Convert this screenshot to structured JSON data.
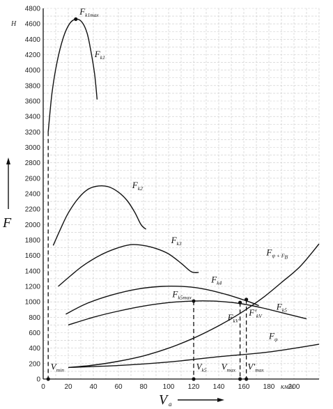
{
  "chart_data": {
    "type": "line",
    "title": "",
    "xlabel": {
      "main": "V",
      "sub": "a"
    },
    "ylabel": "F",
    "xunit": "км/ч",
    "yunit": "Н",
    "xlim": [
      0,
      220
    ],
    "ylim": [
      0,
      4800
    ],
    "grid": true,
    "x_ticks": [
      0,
      20,
      40,
      60,
      80,
      100,
      120,
      140,
      160,
      180,
      200
    ],
    "y_ticks": [
      0,
      200,
      400,
      600,
      800,
      1000,
      1200,
      1400,
      1600,
      1800,
      2000,
      2200,
      2400,
      2600,
      2800,
      3000,
      3200,
      3400,
      3600,
      3800,
      4000,
      4200,
      4400,
      4600,
      4800
    ],
    "series": [
      {
        "id": "fk1",
        "points": [
          [
            4,
            3200
          ],
          [
            7,
            3700
          ],
          [
            11,
            4100
          ],
          [
            16,
            4420
          ],
          [
            21,
            4600
          ],
          [
            26,
            4660
          ],
          [
            31,
            4620
          ],
          [
            35,
            4480
          ],
          [
            38,
            4250
          ],
          [
            41,
            3950
          ],
          [
            43,
            3620
          ]
        ]
      },
      {
        "id": "fk2",
        "points": [
          [
            8,
            1730
          ],
          [
            14,
            1950
          ],
          [
            20,
            2150
          ],
          [
            28,
            2340
          ],
          [
            36,
            2460
          ],
          [
            44,
            2500
          ],
          [
            52,
            2490
          ],
          [
            60,
            2420
          ],
          [
            67,
            2310
          ],
          [
            73,
            2160
          ],
          [
            78,
            2000
          ],
          [
            82,
            1940
          ]
        ]
      },
      {
        "id": "fk3",
        "points": [
          [
            12,
            1200
          ],
          [
            22,
            1340
          ],
          [
            32,
            1470
          ],
          [
            45,
            1600
          ],
          [
            58,
            1690
          ],
          [
            70,
            1740
          ],
          [
            80,
            1730
          ],
          [
            90,
            1690
          ],
          [
            100,
            1620
          ],
          [
            110,
            1500
          ],
          [
            118,
            1390
          ],
          [
            124,
            1380
          ]
        ]
      },
      {
        "id": "fk4",
        "points": [
          [
            18,
            840
          ],
          [
            35,
            980
          ],
          [
            55,
            1090
          ],
          [
            75,
            1165
          ],
          [
            95,
            1200
          ],
          [
            115,
            1195
          ],
          [
            130,
            1160
          ],
          [
            145,
            1100
          ],
          [
            157,
            1040
          ],
          [
            166,
            990
          ],
          [
            172,
            950
          ]
        ]
      },
      {
        "id": "fk5",
        "points": [
          [
            20,
            700
          ],
          [
            40,
            800
          ],
          [
            60,
            880
          ],
          [
            80,
            945
          ],
          [
            100,
            990
          ],
          [
            120,
            1010
          ],
          [
            135,
            1010
          ],
          [
            148,
            995
          ],
          [
            160,
            970
          ],
          [
            175,
            920
          ],
          [
            195,
            840
          ],
          [
            210,
            780
          ]
        ]
      },
      {
        "id": "fpsi_fw",
        "points": [
          [
            20,
            150
          ],
          [
            40,
            180
          ],
          [
            60,
            230
          ],
          [
            80,
            300
          ],
          [
            100,
            400
          ],
          [
            120,
            530
          ],
          [
            140,
            690
          ],
          [
            157,
            850
          ],
          [
            175,
            1050
          ],
          [
            190,
            1250
          ],
          [
            205,
            1460
          ],
          [
            220,
            1750
          ]
        ]
      },
      {
        "id": "fpsi",
        "points": [
          [
            20,
            150
          ],
          [
            60,
            175
          ],
          [
            100,
            220
          ],
          [
            140,
            290
          ],
          [
            180,
            350
          ],
          [
            220,
            450
          ]
        ]
      }
    ],
    "markers": [
      {
        "id": "fk1max-point",
        "x": 26,
        "y": 4660
      },
      {
        "id": "fk5max-point",
        "x": 120,
        "y": 1010
      },
      {
        "id": "fkv-point",
        "x": 157,
        "y": 990
      },
      {
        "id": "fprime-kv-point",
        "x": 162,
        "y": 1030
      },
      {
        "id": "vmin-point",
        "x": 4,
        "y": 0
      },
      {
        "id": "vk5-point",
        "x": 120,
        "y": 0
      },
      {
        "id": "vmax-point",
        "x": 157,
        "y": 0
      },
      {
        "id": "vprime-max-point",
        "x": 162,
        "y": 0
      }
    ],
    "dashed_verticals": [
      {
        "id": "vmin-line",
        "x": 4,
        "y_top": 3200
      },
      {
        "id": "vk5-line",
        "x": 120,
        "y_top": 1010
      },
      {
        "id": "vmax-line",
        "x": 157,
        "y_top": 990
      },
      {
        "id": "vprime-max-line",
        "x": 162,
        "y_top": 1030
      }
    ],
    "annotations": [
      {
        "id": "fk1max",
        "main": "F",
        "sub": "k1max",
        "x": 29,
        "y": 4720
      },
      {
        "id": "fk1",
        "main": "F",
        "sub": "k1",
        "x": 41,
        "y": 4170
      },
      {
        "id": "fk2",
        "main": "F",
        "sub": "k2",
        "x": 71,
        "y": 2470
      },
      {
        "id": "fk3",
        "main": "F",
        "sub": "k3",
        "x": 102,
        "y": 1760
      },
      {
        "id": "fk4",
        "main": "F",
        "sub": "k4",
        "x": 134,
        "y": 1250
      },
      {
        "id": "fk5max",
        "main": "F",
        "sub": "k5max",
        "x": 103,
        "y": 1060
      },
      {
        "id": "fk5",
        "main": "F",
        "sub": "k5",
        "x": 186,
        "y": 900
      },
      {
        "id": "fkv",
        "main": "F",
        "sub": "kV",
        "x": 147,
        "y": 760
      },
      {
        "id": "fprime-kv",
        "main": "F'",
        "sub": "kV",
        "x": 164,
        "y": 820
      },
      {
        "id": "fpsi-fw",
        "main": "F",
        "sub": "ψ + F",
        "sub2": "B",
        "x": 178,
        "y": 1600
      },
      {
        "id": "fpsi",
        "main": "F",
        "sub": "ψ",
        "x": 180,
        "y": 520
      },
      {
        "id": "vmin",
        "main": "V",
        "sub": "min",
        "x": 6,
        "y": 120
      },
      {
        "id": "vk5",
        "main": "V",
        "sub": "k5",
        "x": 122,
        "y": 120
      },
      {
        "id": "vmax",
        "main": "V",
        "sub": "max",
        "x": 142,
        "y": 120
      },
      {
        "id": "vprime-max",
        "main": "V'",
        "sub": "max",
        "x": 163,
        "y": 120
      }
    ]
  }
}
